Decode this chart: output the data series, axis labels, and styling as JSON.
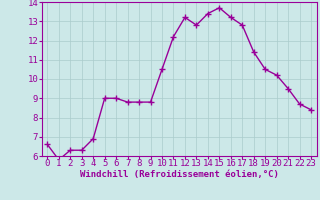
{
  "x": [
    0,
    1,
    2,
    3,
    4,
    5,
    6,
    7,
    8,
    9,
    10,
    11,
    12,
    13,
    14,
    15,
    16,
    17,
    18,
    19,
    20,
    21,
    22,
    23
  ],
  "y": [
    6.6,
    5.8,
    6.3,
    6.3,
    6.9,
    9.0,
    9.0,
    8.8,
    8.8,
    8.8,
    10.5,
    12.2,
    13.2,
    12.8,
    13.4,
    13.7,
    13.2,
    12.8,
    11.4,
    10.5,
    10.2,
    9.5,
    8.7,
    8.4
  ],
  "line_color": "#990099",
  "marker_color": "#990099",
  "bg_color": "#cce8e8",
  "grid_color": "#aacccc",
  "xlabel": "Windchill (Refroidissement éolien,°C)",
  "xlabel_color": "#990099",
  "tick_color": "#990099",
  "ylim": [
    6,
    14
  ],
  "xlim": [
    -0.5,
    23.5
  ],
  "yticks": [
    6,
    7,
    8,
    9,
    10,
    11,
    12,
    13,
    14
  ],
  "xticks": [
    0,
    1,
    2,
    3,
    4,
    5,
    6,
    7,
    8,
    9,
    10,
    11,
    12,
    13,
    14,
    15,
    16,
    17,
    18,
    19,
    20,
    21,
    22,
    23
  ],
  "line_width": 1.0,
  "marker_size": 4.0,
  "xlabel_fontsize": 6.5,
  "tick_fontsize": 6.5
}
